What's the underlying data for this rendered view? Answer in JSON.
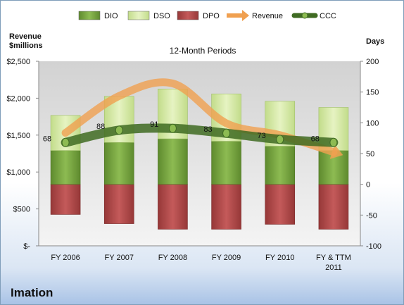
{
  "company": "Imation",
  "chart_data": {
    "type": "bar",
    "subtitle": "12-Month Periods",
    "ylabel": "Revenue $millions",
    "ylabel_lines": [
      "Revenue",
      "$millions"
    ],
    "y2label": "Days",
    "ylim": [
      0,
      2500
    ],
    "y2lim": [
      -100,
      200
    ],
    "categories": [
      "FY 2006",
      "FY 2007",
      "FY 2008",
      "FY 2009",
      "FY 2010",
      "FY & TTM 2011"
    ],
    "category_lines": [
      [
        "FY 2006"
      ],
      [
        "FY 2007"
      ],
      [
        "FY 2008"
      ],
      [
        "FY 2009"
      ],
      [
        "FY 2010"
      ],
      [
        "FY & TTM",
        "2011"
      ]
    ],
    "y_ticks": [
      0,
      500,
      1000,
      1500,
      2000,
      2500
    ],
    "y_tick_labels": [
      "$-",
      "$500",
      "$1,000",
      "$1,500",
      "$2,000",
      "$2,500"
    ],
    "y2_ticks": [
      -100,
      -50,
      0,
      50,
      100,
      150,
      200
    ],
    "y2_tick_labels": [
      "-100",
      "-50",
      "0",
      "50",
      "100",
      "150",
      "200"
    ],
    "legend_position": "top",
    "grid": false,
    "series": [
      {
        "name": "DIO",
        "axis": "days",
        "type": "stacked-bar",
        "color": "#78a442",
        "values": [
          55,
          68,
          74,
          70,
          62,
          55
        ]
      },
      {
        "name": "DSO",
        "axis": "days",
        "type": "stacked-bar",
        "color": "#d4e8a4",
        "values": [
          57,
          75,
          81,
          77,
          73,
          70
        ]
      },
      {
        "name": "DPO",
        "axis": "days",
        "type": "stacked-bar",
        "color": "#b34b4b",
        "values": [
          -49,
          -64,
          -73,
          -73,
          -65,
          -73
        ]
      },
      {
        "name": "Revenue",
        "axis": "revenue",
        "type": "line",
        "color": "#f0a050",
        "values": [
          1530,
          2030,
          2200,
          1660,
          1500,
          1270
        ]
      },
      {
        "name": "CCC",
        "axis": "days",
        "type": "line",
        "color": "#4d7a2a",
        "values": [
          68,
          88,
          91,
          83,
          73,
          68
        ],
        "labels": [
          "68",
          "88",
          "91",
          "83",
          "73",
          "68"
        ]
      }
    ]
  }
}
